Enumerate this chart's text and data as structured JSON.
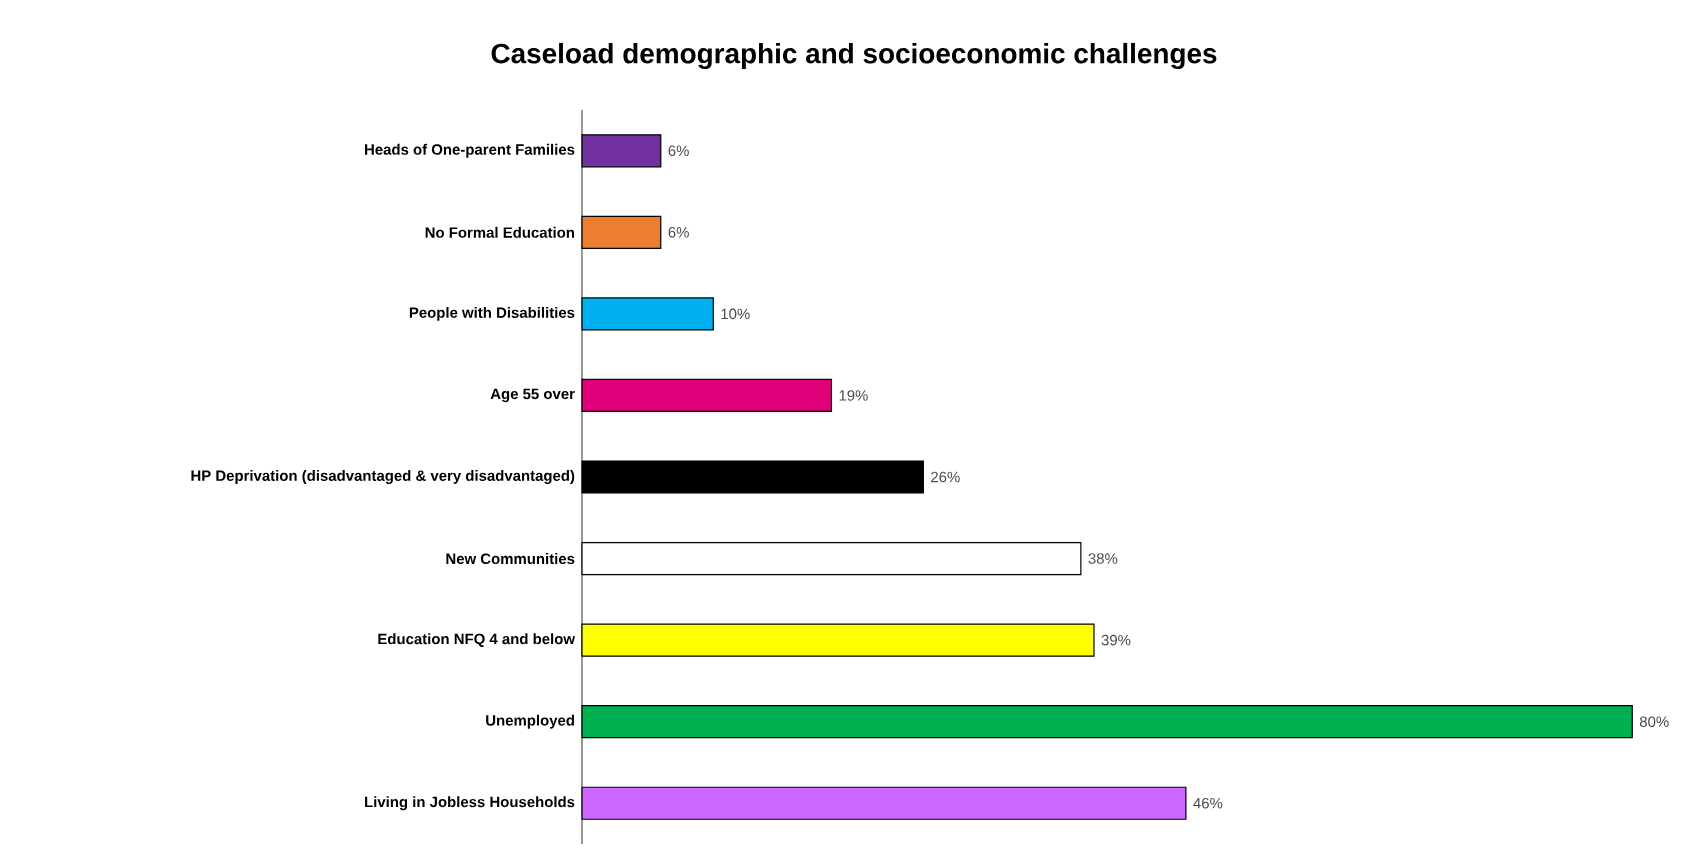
{
  "chart_data": {
    "type": "bar",
    "orientation": "horizontal",
    "title": "Caseload demographic and socioeconomic challenges",
    "categories": [
      "Heads of One-parent Families",
      "No Formal Education",
      "People with Disabilities",
      "Age 55 over",
      "HP Deprivation (disadvantaged & very disadvantaged)",
      "New Communities",
      "Education NFQ 4 and below",
      "Unemployed",
      "Living in Jobless Households"
    ],
    "values": [
      6,
      6,
      10,
      19,
      26,
      38,
      39,
      80,
      46
    ],
    "value_labels": [
      "6%",
      "6%",
      "10%",
      "19%",
      "26%",
      "38%",
      "39%",
      "80%",
      "46%"
    ],
    "colors": [
      "#7030a0",
      "#ed7d31",
      "#00b0f0",
      "#e0007a",
      "#000000",
      "#ffffff",
      "#ffff00",
      "#00b050",
      "#cc66ff"
    ]
  }
}
